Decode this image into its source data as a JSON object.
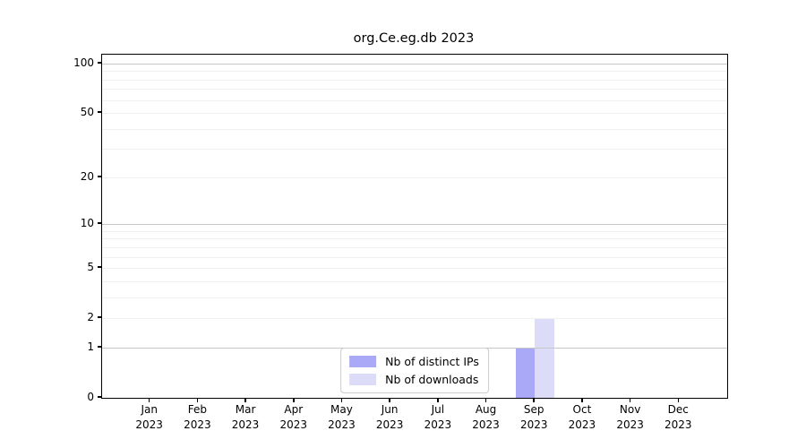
{
  "chart_data": {
    "type": "bar",
    "title": "org.Ce.eg.db 2023",
    "categories": [
      "Jan",
      "Feb",
      "Mar",
      "Apr",
      "May",
      "Jun",
      "Jul",
      "Aug",
      "Sep",
      "Oct",
      "Nov",
      "Dec"
    ],
    "category_year": "2023",
    "series": [
      {
        "name": "Nb of distinct IPs",
        "color": "#a9a9f7",
        "values": [
          0,
          0,
          0,
          0,
          0,
          0,
          0,
          0,
          1,
          0,
          0,
          0
        ]
      },
      {
        "name": "Nb of downloads",
        "color": "#dcdcf9",
        "values": [
          0,
          0,
          0,
          0,
          0,
          0,
          0,
          0,
          2,
          0,
          0,
          0
        ]
      }
    ],
    "xlabel": "",
    "ylabel": "",
    "yscale": "log1p",
    "ylim": [
      0,
      113
    ],
    "yticks": [
      0,
      1,
      2,
      5,
      10,
      20,
      50,
      100
    ],
    "gridlines_major": [
      1,
      10,
      100
    ],
    "gridlines_minor": [
      2,
      3,
      4,
      5,
      6,
      7,
      8,
      9,
      20,
      30,
      40,
      50,
      60,
      70,
      80,
      90
    ],
    "grid": "horizontal",
    "legend_position": "lower center",
    "colors": {
      "grid_major": "#c6c6c6",
      "grid_minor": "#f0f0f0",
      "axis": "#000000",
      "legend_border": "#cccccc"
    }
  }
}
